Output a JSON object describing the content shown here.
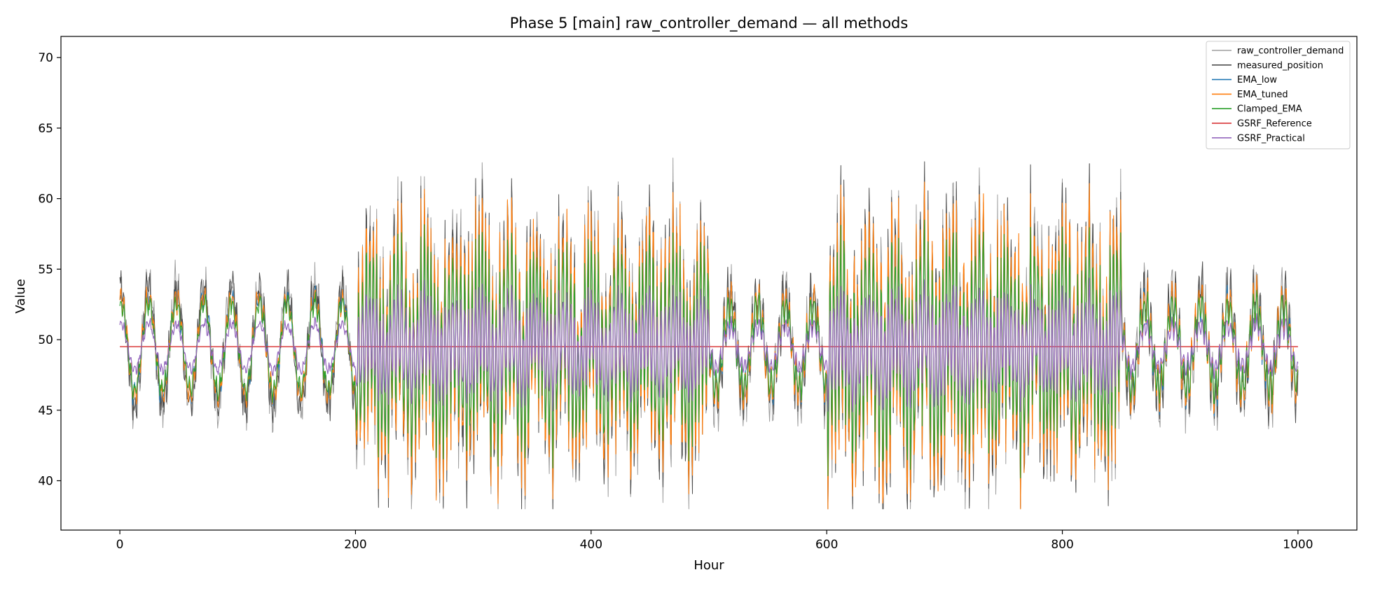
{
  "chart_data": {
    "type": "line",
    "title": "Phase 5 [main] raw_controller_demand — all methods",
    "xlabel": "Hour",
    "ylabel": "Value",
    "xlim": [
      -50,
      1050
    ],
    "ylim": [
      36.5,
      71.5
    ],
    "x_ticks": [
      0,
      200,
      400,
      600,
      800,
      1000
    ],
    "y_ticks": [
      40,
      45,
      50,
      55,
      60,
      65,
      70
    ],
    "grid": false,
    "legend_position": "top-right",
    "hours": [
      0,
      1000
    ],
    "clip_min": 38,
    "series": [
      {
        "name": "raw_controller_demand",
        "color": "#9e9e9e"
      },
      {
        "name": "measured_position",
        "color": "#4d4d4d"
      },
      {
        "name": "EMA_low",
        "color": "#1f77b4"
      },
      {
        "name": "EMA_tuned",
        "color": "#ff7f0e"
      },
      {
        "name": "Clamped_EMA",
        "color": "#2ca02c"
      },
      {
        "name": "GSRF_Reference",
        "color": "#d62728"
      },
      {
        "name": "GSRF_Practical",
        "color": "#9467bd"
      }
    ],
    "regimes": [
      {
        "x": [
          0,
          200
        ],
        "mean": 49.5,
        "slow_period": 23.5,
        "slow_amplitude": 3.6,
        "fast_amplitude": 0.8
      },
      {
        "x": [
          200,
          500
        ],
        "mean": 49.5,
        "slow_period": 23.5,
        "slow_amplitude": 2.5,
        "fast_amplitude": 8.5
      },
      {
        "x": [
          500,
          600
        ],
        "mean": 49.5,
        "slow_period": 23.5,
        "slow_amplitude": 3.2,
        "fast_amplitude": 1.6
      },
      {
        "x": [
          600,
          850
        ],
        "mean": 49.5,
        "slow_period": 23.5,
        "slow_amplitude": 2.5,
        "fast_amplitude": 9.0
      },
      {
        "x": [
          850,
          1000
        ],
        "mean": 49.5,
        "slow_period": 23.5,
        "slow_amplitude": 3.2,
        "fast_amplitude": 1.8
      }
    ],
    "reference_level": 49.5
  }
}
